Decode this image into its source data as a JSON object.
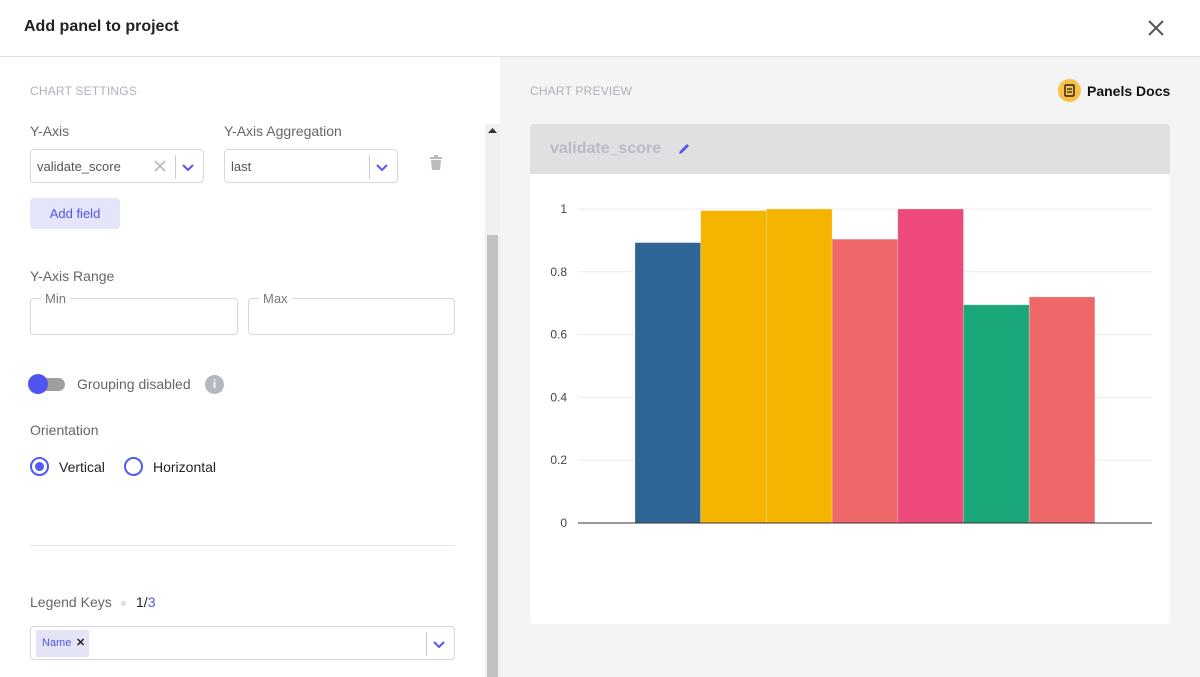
{
  "dialog": {
    "title": "Add panel to project"
  },
  "settings": {
    "section_label": "CHART SETTINGS",
    "y_axis_label": "Y-Axis",
    "y_axis_value": "validate_score",
    "aggregation_label": "Y-Axis Aggregation",
    "aggregation_value": "last",
    "add_field_label": "Add field",
    "range_label": "Y-Axis Range",
    "min_label": "Min",
    "max_label": "Max",
    "grouping_label": "Grouping disabled",
    "grouping_enabled": false,
    "orientation_label": "Orientation",
    "orientation_options": [
      "Vertical",
      "Horizontal"
    ],
    "orientation_selected": "Vertical",
    "legend_label": "Legend Keys",
    "legend_count": "1/",
    "legend_total": "3",
    "legend_tags": [
      "Name"
    ]
  },
  "preview": {
    "section_label": "CHART PREVIEW",
    "docs_label": "Panels Docs",
    "chart_title": "validate_score"
  },
  "colors": {
    "accent": "#5258f2"
  },
  "chart_data": {
    "type": "bar",
    "title": "validate_score",
    "values": [
      0.893,
      0.995,
      1.0,
      0.904,
      1.0,
      0.695,
      0.72
    ],
    "colors": [
      "#2f6497",
      "#f4b400",
      "#f4b400",
      "#ef6868",
      "#ed4a7b",
      "#1aa87a",
      "#ef6868"
    ],
    "ylim": [
      0,
      1
    ],
    "yticks": [
      "0",
      "0.2",
      "0.4",
      "0.6",
      "0.8",
      "1"
    ],
    "grid": true
  }
}
